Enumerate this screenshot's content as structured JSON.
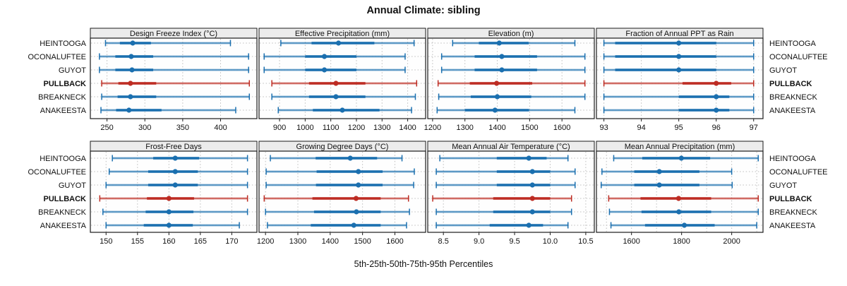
{
  "chart_data": {
    "type": "percentile-dotplot-trellis",
    "title": "Annual Climate: sibling",
    "caption": "5th-25th-50th-75th-95th Percentiles",
    "percentiles": [
      5,
      25,
      50,
      75,
      95
    ],
    "sites": [
      "HEINTOOGA",
      "OCONALUFTEE",
      "GUYOT",
      "PULLBACK",
      "BREAKNECK",
      "ANAKEESTA"
    ],
    "highlight_site": "PULLBACK",
    "legend_position": "none",
    "grid": "dotted",
    "colors": {
      "site": "#1a6faf",
      "highlight": "#bd2c23",
      "gridline": "#bdbdbd",
      "panel_border": "#1a1a1a",
      "header_fill": "#ececec",
      "text": "#111111"
    },
    "panels": [
      {
        "title": "Design Freeze Index (°C)",
        "tick_values": [
          250,
          300,
          350,
          400
        ],
        "tick_labels": [
          "250",
          "300",
          "350",
          "400"
        ],
        "xlim": [
          228,
          448
        ],
        "series": [
          [
            248,
            267,
            284,
            308,
            413
          ],
          [
            240,
            261,
            282,
            311,
            437
          ],
          [
            240,
            261,
            283,
            311,
            437
          ],
          [
            243,
            265,
            281,
            315,
            438
          ],
          [
            243,
            264,
            281,
            315,
            438
          ],
          [
            242,
            262,
            279,
            322,
            420
          ]
        ]
      },
      {
        "title": "Effective Precipitation (mm)",
        "tick_values": [
          900,
          1000,
          1100,
          1200,
          1300,
          1400
        ],
        "tick_labels": [
          "900",
          "1000",
          "1100",
          "1200",
          "1300",
          "1400"
        ],
        "xlim": [
          820,
          1470
        ],
        "series": [
          [
            905,
            1025,
            1130,
            1270,
            1425
          ],
          [
            840,
            1000,
            1075,
            1200,
            1390
          ],
          [
            840,
            1000,
            1075,
            1200,
            1390
          ],
          [
            870,
            1015,
            1120,
            1235,
            1435
          ],
          [
            870,
            1015,
            1120,
            1235,
            1430
          ],
          [
            895,
            1030,
            1145,
            1290,
            1415
          ]
        ]
      },
      {
        "title": "Elevation (m)",
        "tick_values": [
          1200,
          1300,
          1400,
          1500,
          1600
        ],
        "tick_labels": [
          "1200",
          "1300",
          "1400",
          "1500",
          "1600"
        ],
        "xlim": [
          1185,
          1700
        ],
        "series": [
          [
            1262,
            1343,
            1406,
            1497,
            1640
          ],
          [
            1228,
            1330,
            1414,
            1523,
            1671
          ],
          [
            1228,
            1330,
            1414,
            1523,
            1671
          ],
          [
            1217,
            1315,
            1398,
            1508,
            1671
          ],
          [
            1219,
            1318,
            1400,
            1505,
            1671
          ],
          [
            1214,
            1300,
            1393,
            1498,
            1640
          ]
        ]
      },
      {
        "title": "Fraction of Annual PPT as Rain",
        "tick_values": [
          93,
          94,
          95,
          96,
          97
        ],
        "tick_labels": [
          "93",
          "94",
          "95",
          "96",
          "97"
        ],
        "xlim": [
          92.8,
          97.25
        ],
        "series": [
          [
            93,
            93.3,
            95,
            96,
            97
          ],
          [
            93,
            93.3,
            95,
            96,
            97
          ],
          [
            93,
            93.3,
            95,
            96,
            97
          ],
          [
            93,
            95.1,
            96,
            96.4,
            97
          ],
          [
            93,
            95.0,
            96,
            96.35,
            97
          ],
          [
            93,
            95.0,
            96,
            96.35,
            97
          ]
        ]
      },
      {
        "title": "Frost-Free Days",
        "tick_values": [
          150,
          155,
          160,
          165,
          170
        ],
        "tick_labels": [
          "150",
          "155",
          "160",
          "165",
          "170"
        ],
        "xlim": [
          147.5,
          174
        ],
        "series": [
          [
            151,
            157.5,
            161,
            164.8,
            172.5
          ],
          [
            150.5,
            156.7,
            161,
            164.6,
            172.5
          ],
          [
            150,
            156.7,
            161,
            164.6,
            172.5
          ],
          [
            149,
            156.5,
            160,
            164,
            172.5
          ],
          [
            149.5,
            156.3,
            160,
            163.9,
            172.5
          ],
          [
            150,
            156,
            160,
            163.8,
            171.2
          ]
        ]
      },
      {
        "title": "Growing Degree Days (°C)",
        "tick_values": [
          1200,
          1300,
          1400,
          1500,
          1600
        ],
        "tick_labels": [
          "1200",
          "1300",
          "1400",
          "1500",
          "1600"
        ],
        "xlim": [
          1180,
          1695
        ],
        "series": [
          [
            1215,
            1355,
            1462,
            1545,
            1622
          ],
          [
            1202,
            1358,
            1487,
            1562,
            1660
          ],
          [
            1202,
            1356,
            1487,
            1562,
            1658
          ],
          [
            1196,
            1345,
            1480,
            1556,
            1642
          ],
          [
            1200,
            1350,
            1481,
            1556,
            1645
          ],
          [
            1206,
            1340,
            1473,
            1556,
            1636
          ]
        ]
      },
      {
        "title": "Mean Annual Air Temperature (°C)",
        "tick_values": [
          8.5,
          9.0,
          9.5,
          10.0,
          10.5
        ],
        "tick_labels": [
          "8.5",
          "9.0",
          "9.5",
          "10.0",
          "10.5"
        ],
        "xlim": [
          8.28,
          10.62
        ],
        "series": [
          [
            8.45,
            9.25,
            9.7,
            9.95,
            10.25
          ],
          [
            8.4,
            9.25,
            9.75,
            10.0,
            10.35
          ],
          [
            8.4,
            9.25,
            9.75,
            10.0,
            10.35
          ],
          [
            8.35,
            9.2,
            9.75,
            10.0,
            10.3
          ],
          [
            8.4,
            9.2,
            9.75,
            10.0,
            10.3
          ],
          [
            8.4,
            9.15,
            9.7,
            9.9,
            10.25
          ]
        ]
      },
      {
        "title": "Mean Annual Precipitation (mm)",
        "tick_values": [
          1600,
          1800,
          2000
        ],
        "tick_labels": [
          "1600",
          "1800",
          "2000"
        ],
        "grid_values": [
          1500,
          1600,
          1700,
          1800,
          1900,
          2000,
          2100
        ],
        "xlim": [
          1460,
          2125
        ],
        "series": [
          [
            1529,
            1643,
            1799,
            1914,
            2106
          ],
          [
            1482,
            1611,
            1711,
            1871,
            2000
          ],
          [
            1479,
            1611,
            1711,
            1871,
            2002
          ],
          [
            1509,
            1636,
            1788,
            1918,
            2106
          ],
          [
            1512,
            1640,
            1789,
            1918,
            2106
          ],
          [
            1518,
            1654,
            1811,
            1932,
            2100
          ]
        ]
      }
    ]
  }
}
